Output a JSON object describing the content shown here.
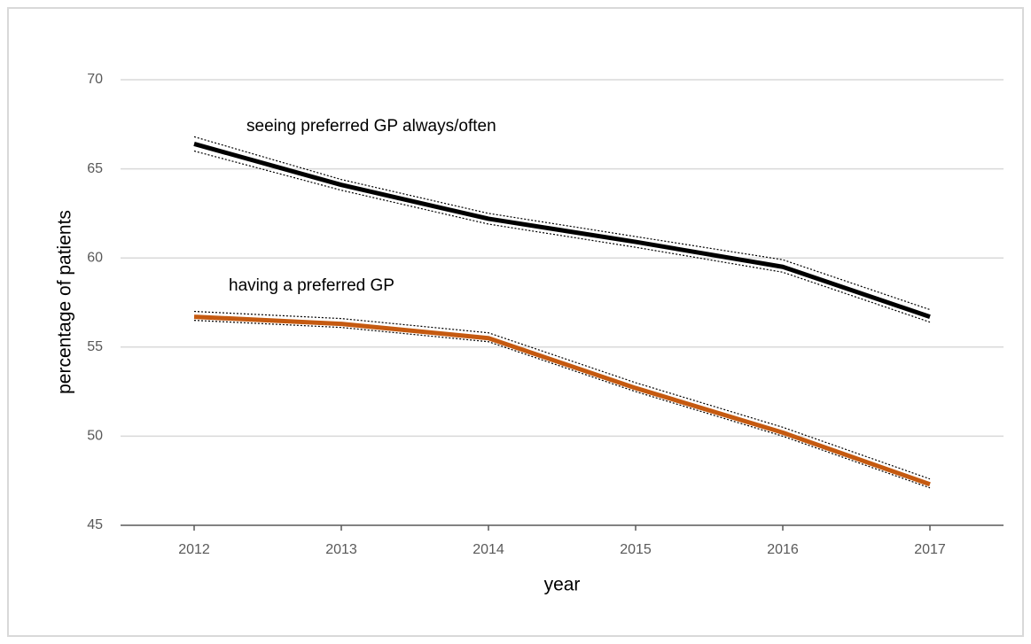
{
  "chart_data": {
    "type": "line",
    "x_label": "year",
    "y_label": "percentage of patients",
    "x": [
      2012,
      2013,
      2014,
      2015,
      2016,
      2017
    ],
    "xlim": [
      2011.5,
      2017.5
    ],
    "xticks": [
      2012,
      2013,
      2014,
      2015,
      2016,
      2017
    ],
    "ylim": [
      45,
      70
    ],
    "yticks": [
      45,
      50,
      55,
      60,
      65,
      70
    ],
    "grid": true,
    "series": [
      {
        "name": "seeing preferred GP always/often",
        "color": "#000000",
        "values": [
          66.4,
          64.1,
          62.2,
          60.9,
          59.5,
          56.7
        ],
        "ci_upper": [
          66.8,
          64.4,
          62.5,
          61.2,
          59.9,
          57.1
        ],
        "ci_lower": [
          66.0,
          63.8,
          61.9,
          60.6,
          59.2,
          56.4
        ]
      },
      {
        "name": "having a preferred GP",
        "color": "#c55a11",
        "values": [
          56.7,
          56.3,
          55.5,
          52.7,
          50.2,
          47.3
        ],
        "ci_upper": [
          57.0,
          56.6,
          55.8,
          53.0,
          50.5,
          47.6
        ],
        "ci_lower": [
          56.5,
          56.1,
          55.3,
          52.5,
          50.0,
          47.1
        ]
      }
    ]
  }
}
